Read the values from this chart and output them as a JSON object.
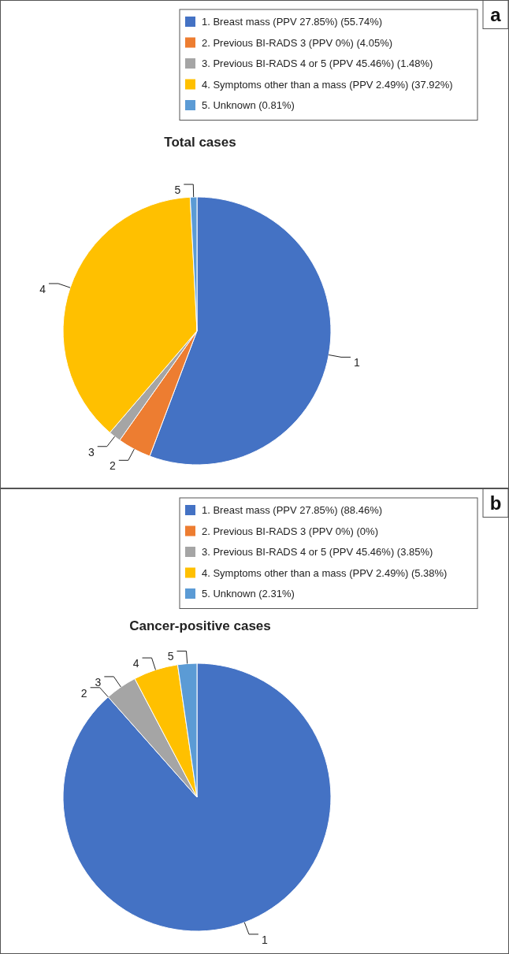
{
  "chart_data": [
    {
      "type": "pie",
      "title": "Total cases",
      "legend": "top right",
      "categories": [
        "1. Breast mass (PPV 27.85%) (55.74%)",
        "2. Previous BI-RADS 3 (PPV 0%) (4.05%)",
        "3. Previous BI-RADS 4 or 5 (PPV 45.46%) (1.48%)",
        "4. Symptoms other than a mass (PPV 2.49%) (37.92%)",
        "5. Unknown (0.81%)"
      ],
      "values": [
        55.74,
        4.05,
        1.48,
        37.92,
        0.81
      ],
      "colors": [
        "#4472c4",
        "#ed7d31",
        "#a5a5a5",
        "#ffc000",
        "#5b9bd5"
      ],
      "annotations": [
        "a",
        {
          "text": "1",
          "x": "1. Breast mass (PPV 27.85%) (55.74%)"
        },
        {
          "text": "2",
          "x": "2. Previous BI-RADS 3 (PPV 0%) (4.05%)"
        },
        {
          "text": "3",
          "x": "3. Previous BI-RADS 4 or 5 (PPV 45.46%) (1.48%)"
        },
        {
          "text": "4",
          "x": "4. Symptoms other than a mass (PPV 2.49%) (37.92%)"
        },
        {
          "text": "5",
          "x": "5. Unknown (0.81%)"
        }
      ]
    },
    {
      "type": "pie",
      "title": "Cancer-positive cases",
      "legend": "top right",
      "categories": [
        "1. Breast mass (PPV 27.85%) (88.46%)",
        "2. Previous BI-RADS 3 (PPV 0%) (0%)",
        "3. Previous BI-RADS 4 or 5 (PPV 45.46%) (3.85%)",
        "4. Symptoms other than a mass (PPV 2.49%) (5.38%)",
        "5. Unknown (2.31%)"
      ],
      "values": [
        88.46,
        0,
        3.85,
        5.38,
        2.31
      ],
      "colors": [
        "#4472c4",
        "#ed7d31",
        "#a5a5a5",
        "#ffc000",
        "#5b9bd5"
      ],
      "annotations": [
        "b",
        {
          "text": "1",
          "x": "1. Breast mass (PPV 27.85%) (88.46%)"
        },
        {
          "text": "2",
          "x": "2. Previous BI-RADS 3 (PPV 0%) (0%)"
        },
        {
          "text": "3",
          "x": "3. Previous BI-RADS 4 or 5 (PPV 45.46%) (3.85%)"
        },
        {
          "text": "4",
          "x": "4. Symptoms other than a mass (PPV 2.49%) (5.38%)"
        },
        {
          "text": "5",
          "x": "5. Unknown (2.31%)"
        }
      ]
    }
  ]
}
